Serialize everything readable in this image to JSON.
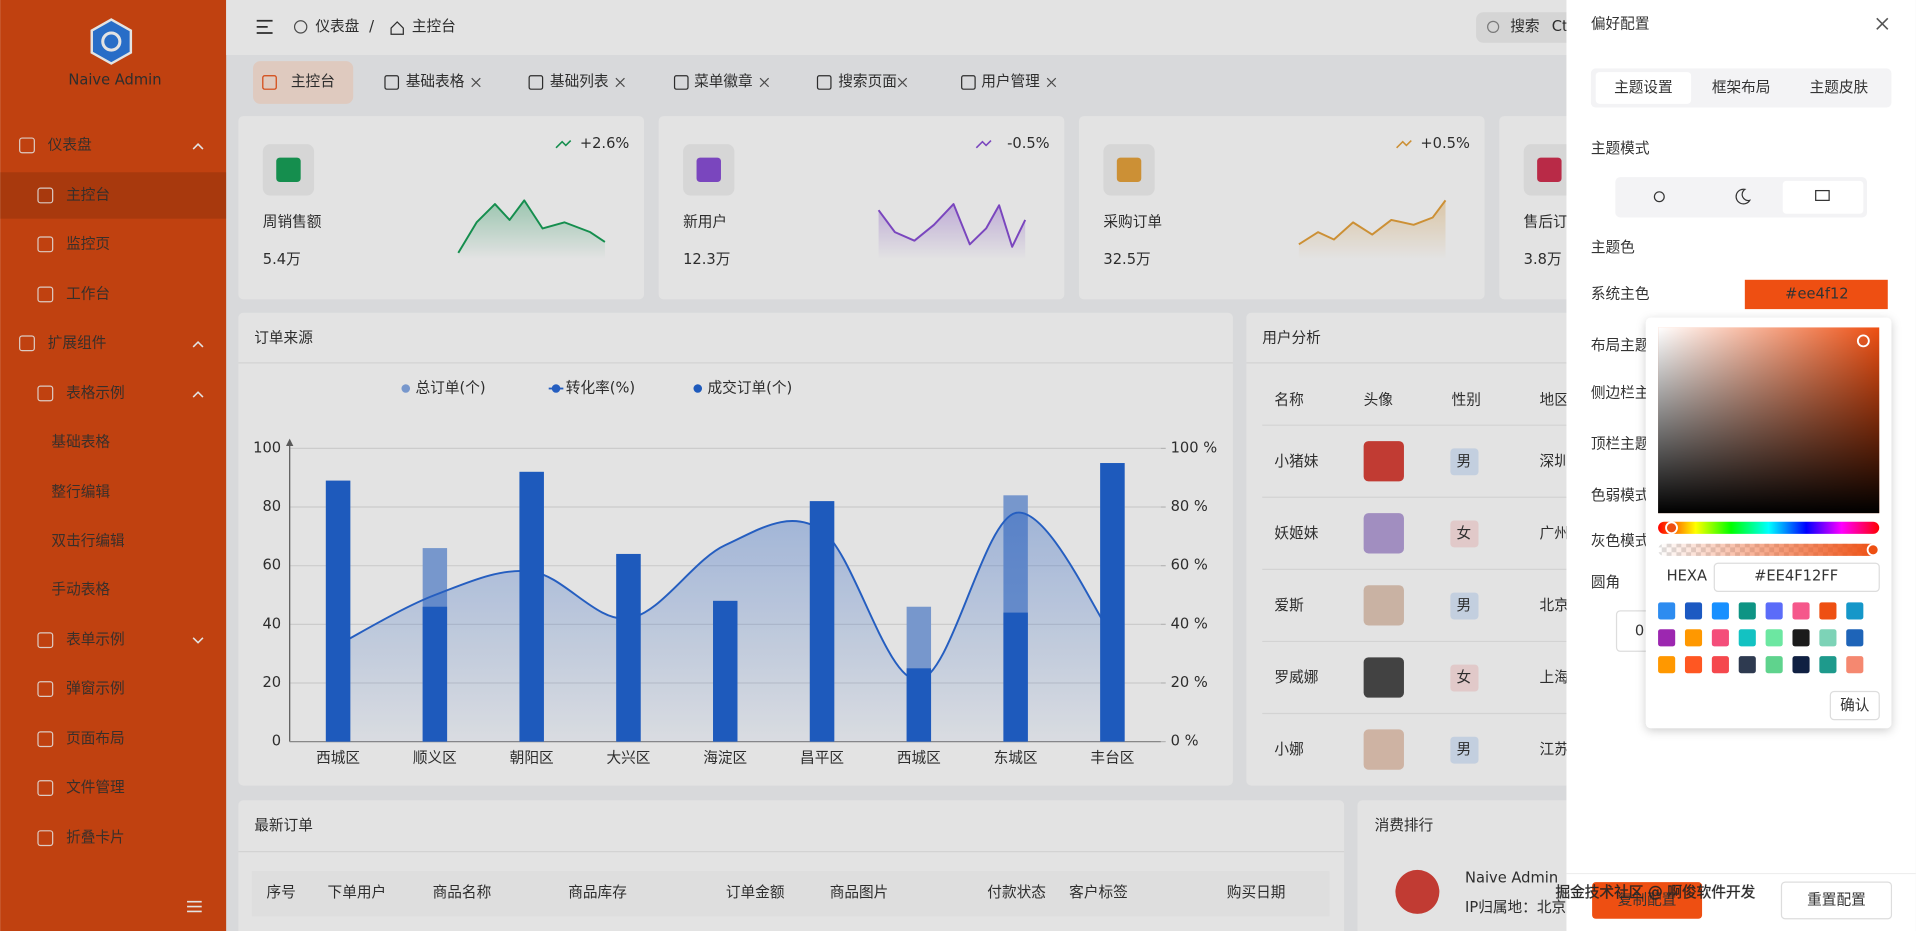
{
  "sidebar": {
    "brand": "Naive Admin",
    "menu": [
      "仪表盘",
      "主控台",
      "监控页",
      "工作台",
      "扩展组件",
      "表格示例",
      "基础表格",
      "整行编辑",
      "双击行编辑",
      "手动表格",
      "表单示例",
      "弹窗示例",
      "页面布局",
      "文件管理",
      "折叠卡片"
    ]
  },
  "header": {
    "breadcrumb": [
      "仪表盘",
      "主控台"
    ],
    "search": "搜索",
    "shortcut": "Ct"
  },
  "tabs": [
    "主控台",
    "基础表格",
    "基础列表",
    "菜单徽章",
    "搜索页面",
    "用户管理"
  ],
  "stats": [
    {
      "title": "周销售额",
      "value": "5.4万",
      "trend": "+2.6%"
    },
    {
      "title": "新用户",
      "value": "12.3万",
      "trend": "-0.5%"
    },
    {
      "title": "采购订单",
      "value": "32.5万",
      "trend": "+0.5%"
    },
    {
      "title": "售后订单",
      "value": "3.8万"
    }
  ],
  "chart_data": {
    "type": "bar",
    "title": "订单来源",
    "categories": [
      "西城区",
      "顺义区",
      "朝阳区",
      "大兴区",
      "海淀区",
      "昌平区",
      "西城区",
      "东城区",
      "丰台区"
    ],
    "series": [
      {
        "name": "总订单(个)",
        "color": "#86aae6",
        "values": [
          89,
          66,
          92,
          64,
          48,
          82,
          46,
          84,
          95
        ]
      },
      {
        "name": "转化率(%)",
        "type": "line",
        "axis": "y2",
        "color": "#2a6ad8",
        "values": [
          33,
          50,
          58,
          42,
          67,
          72,
          21,
          78,
          36
        ]
      },
      {
        "name": "成交订单(个)",
        "color": "#2266d4",
        "values": [
          89,
          46,
          92,
          64,
          48,
          82,
          25,
          44,
          95
        ]
      }
    ],
    "ylim": [
      0,
      100
    ],
    "yticks": [
      0,
      20,
      40,
      60,
      80,
      100
    ],
    "y2lim": [
      0,
      100
    ],
    "y2ticks": [
      {
        "value": 0,
        "label": "0 %"
      },
      {
        "value": 20,
        "label": "20 %"
      },
      {
        "value": 40,
        "label": "40 %"
      },
      {
        "value": 60,
        "label": "60 %"
      },
      {
        "value": 80,
        "label": "80 %"
      },
      {
        "value": 100,
        "label": "100 %"
      }
    ],
    "grid": true
  },
  "user_analysis": {
    "title": "用户分析",
    "columns": [
      "名称",
      "头像",
      "性别",
      "地区"
    ],
    "rows": [
      [
        "小猪妹",
        "男",
        "深圳"
      ],
      [
        "妖姬妹",
        "女",
        "广州"
      ],
      [
        "爱斯",
        "男",
        "北京"
      ],
      [
        "罗威娜",
        "女",
        "上海"
      ],
      [
        "小娜",
        "男",
        "江苏"
      ]
    ]
  },
  "latest_orders": {
    "title": "最新订单",
    "columns": [
      "序号",
      "下单用户",
      "商品名称",
      "商品库存",
      "订单金额",
      "商品图片",
      "付款状态",
      "客户标签",
      "购买日期"
    ]
  },
  "ranking": {
    "title": "消费排行",
    "name": "Naive Admin",
    "ip": "IP归属地：北京"
  },
  "drawer": {
    "title": "偏好配置",
    "tabs": [
      "主题设置",
      "框架布局",
      "主题皮肤"
    ],
    "theme_mode": "主题模式",
    "theme_color": "主题色",
    "primary_label": "系统主色",
    "primary_value": "#ee4f12",
    "layout_theme": "布局主题",
    "settings": [
      "侧边栏主题",
      "顶栏主题",
      "色弱模式",
      "灰色模式"
    ],
    "radius_label": "圆角",
    "radius_value": "0",
    "picker": {
      "mode": "HEXA",
      "value": "#EE4F12FF",
      "confirm": "确认",
      "swatches": [
        "#2d8cf0",
        "#1c59c2",
        "#1890ff",
        "#0e9484",
        "#5b6cf9",
        "#f5588b",
        "#ee4f12",
        "#1597c9",
        "#9c27b0",
        "#ff9800",
        "#f44e7a",
        "#13c2c2",
        "#6ce7a1",
        "#1b1b1b",
        "#7dd3b7",
        "#1e64b8",
        "#ff9800",
        "#ff5722",
        "#f5484d",
        "#2e3a50",
        "#5fd38d",
        "#102042",
        "#1e9a8c",
        "#f58870"
      ]
    },
    "buttons": [
      "复制配置",
      "重置配置"
    ]
  },
  "watermark": "掘金技术社区 @ 啊俊软件开发"
}
